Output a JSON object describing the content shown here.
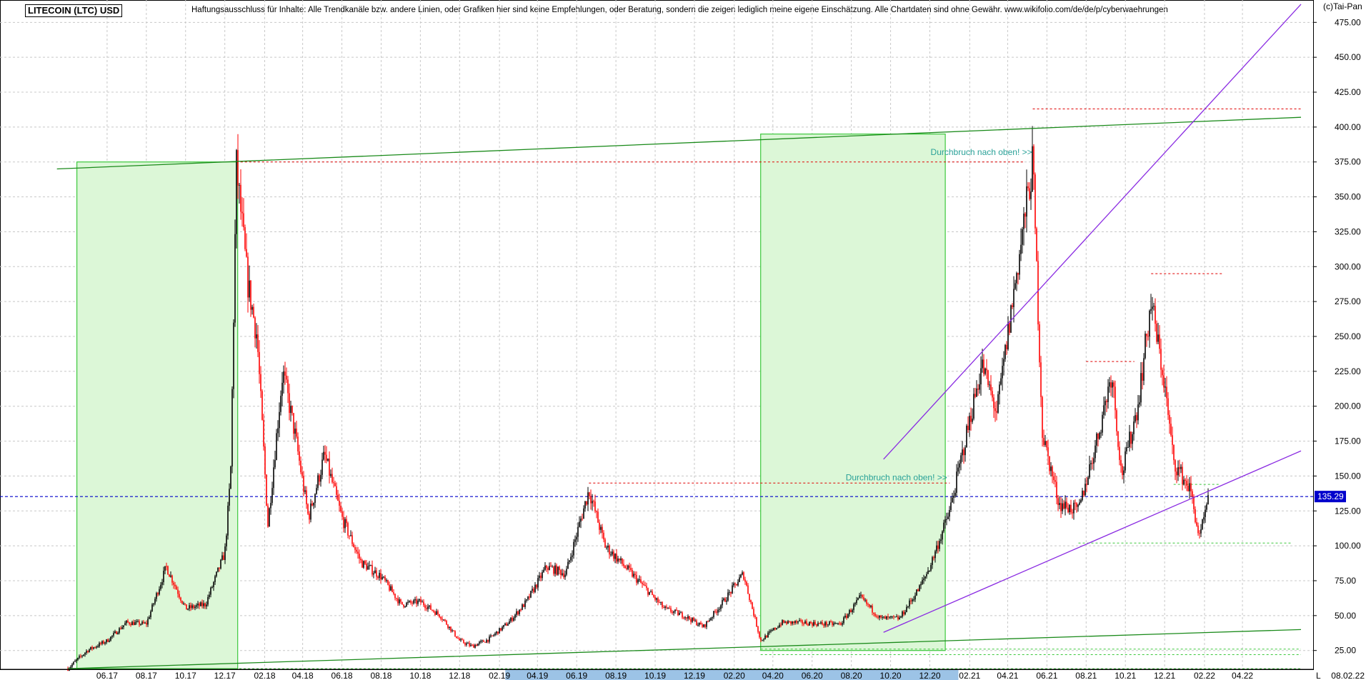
{
  "header": {
    "title": "LITECOIN (LTC) USD",
    "disclaimer": "Haftungsausschluss für Inhalte: Alle Trendkanäle bzw. andere Linien, oder Grafiken hier sind keine Empfehlungen, oder Beratung, sondern die zeigen lediglich meine eigene Einschätzung. Alle Chartdaten sind ohne Gewähr.  www.wikifolio.com/de/de/p/cyberwaehrungen",
    "copyright": "(c)Tai-Pan"
  },
  "colors": {
    "grid": "#c8c8c8",
    "up_candle": "#000000",
    "down_candle": "#ff0000",
    "box_fill": "#dcf7d7",
    "box_stroke": "#3cc83c",
    "trend_green": "#1a8a1a",
    "channel_purple": "#8a2be2",
    "resistance_red": "#e00000",
    "support_green": "#3cc83c",
    "current_price": "#0000cc",
    "annotation": "#2aa198",
    "x_highlight": "#9cc3e6"
  },
  "chart_data": {
    "type": "candlestick",
    "title": "LITECOIN (LTC) USD",
    "xlabel": "",
    "ylabel": "",
    "ylim": [
      10,
      490
    ],
    "y_ticks": [
      "25.00",
      "50.00",
      "75.00",
      "100.00",
      "125.00",
      "150.00",
      "175.00",
      "200.00",
      "225.00",
      "250.00",
      "275.00",
      "300.00",
      "325.00",
      "350.00",
      "375.00",
      "400.00",
      "425.00",
      "450.00",
      "475.00"
    ],
    "x_ticks": [
      "06.17",
      "08.17",
      "10.17",
      "12.17",
      "02.18",
      "04.18",
      "06.18",
      "08.18",
      "10.18",
      "12.18",
      "02.19",
      "04.19",
      "06.19",
      "08.19",
      "10.19",
      "12.19",
      "02.20",
      "04.20",
      "06.20",
      "08.20",
      "10.20",
      "12.20",
      "02.21",
      "04.21",
      "06.21",
      "08.21",
      "10.21",
      "12.21",
      "02.22",
      "04.22"
    ],
    "x_highlight_range": [
      "04.19",
      "12.20"
    ],
    "last_date": "08.02.22",
    "scale_label": "L",
    "current_price": 135.29,
    "current_price_label": "135.29",
    "price_path": [
      [
        "2017-04-01",
        12
      ],
      [
        "2017-05-01",
        25
      ],
      [
        "2017-06-01",
        32
      ],
      [
        "2017-07-01",
        45
      ],
      [
        "2017-08-01",
        44
      ],
      [
        "2017-09-01",
        85
      ],
      [
        "2017-10-01",
        55
      ],
      [
        "2017-11-01",
        58
      ],
      [
        "2017-12-01",
        95
      ],
      [
        "2017-12-10",
        150
      ],
      [
        "2017-12-19",
        372
      ],
      [
        "2018-01-05",
        290
      ],
      [
        "2018-01-20",
        250
      ],
      [
        "2018-02-06",
        115
      ],
      [
        "2018-03-01",
        225
      ],
      [
        "2018-03-20",
        180
      ],
      [
        "2018-04-10",
        120
      ],
      [
        "2018-05-05",
        165
      ],
      [
        "2018-06-01",
        120
      ],
      [
        "2018-07-01",
        88
      ],
      [
        "2018-08-01",
        78
      ],
      [
        "2018-09-01",
        58
      ],
      [
        "2018-10-01",
        60
      ],
      [
        "2018-11-01",
        50
      ],
      [
        "2018-12-01",
        32
      ],
      [
        "2018-12-20",
        28
      ],
      [
        "2019-01-15",
        33
      ],
      [
        "2019-02-15",
        45
      ],
      [
        "2019-03-15",
        60
      ],
      [
        "2019-04-15",
        85
      ],
      [
        "2019-05-15",
        80
      ],
      [
        "2019-06-20",
        140
      ],
      [
        "2019-07-15",
        100
      ],
      [
        "2019-08-15",
        85
      ],
      [
        "2019-09-15",
        70
      ],
      [
        "2019-10-15",
        55
      ],
      [
        "2019-11-15",
        50
      ],
      [
        "2019-12-15",
        42
      ],
      [
        "2020-01-15",
        60
      ],
      [
        "2020-02-15",
        80
      ],
      [
        "2020-03-13",
        32
      ],
      [
        "2020-04-15",
        45
      ],
      [
        "2020-05-15",
        45
      ],
      [
        "2020-06-15",
        44
      ],
      [
        "2020-07-15",
        44
      ],
      [
        "2020-08-15",
        63
      ],
      [
        "2020-09-15",
        48
      ],
      [
        "2020-10-15",
        48
      ],
      [
        "2020-11-15",
        70
      ],
      [
        "2020-12-01",
        85
      ],
      [
        "2021-01-01",
        125
      ],
      [
        "2021-01-20",
        165
      ],
      [
        "2021-02-20",
        230
      ],
      [
        "2021-03-15",
        195
      ],
      [
        "2021-04-10",
        280
      ],
      [
        "2021-05-10",
        375
      ],
      [
        "2021-05-25",
        180
      ],
      [
        "2021-06-20",
        130
      ],
      [
        "2021-07-20",
        125
      ],
      [
        "2021-08-20",
        180
      ],
      [
        "2021-09-10",
        225
      ],
      [
        "2021-09-25",
        150
      ],
      [
        "2021-10-20",
        200
      ],
      [
        "2021-11-10",
        275
      ],
      [
        "2021-12-01",
        215
      ],
      [
        "2021-12-15",
        160
      ],
      [
        "2022-01-10",
        140
      ],
      [
        "2022-01-24",
        105
      ],
      [
        "2022-02-08",
        135
      ]
    ],
    "resistance_lines": [
      {
        "level": 375,
        "from": "2017-12-19",
        "to": "2021-04-25"
      },
      {
        "level": 413,
        "from": "2021-05-10",
        "to": "2022-07-01"
      },
      {
        "level": 145,
        "from": "2019-06-20",
        "to": "2021-01-01"
      },
      {
        "level": 295,
        "from": "2021-11-10",
        "to": "2022-03-01"
      },
      {
        "level": 232,
        "from": "2021-08-01",
        "to": "2021-10-15"
      }
    ],
    "support_lines": [
      {
        "level": 102,
        "from": "2021-07-20",
        "to": "2022-06-15"
      },
      {
        "level": 144,
        "from": "2021-12-15",
        "to": "2022-02-25"
      },
      {
        "level": 26,
        "from": "2020-03-13",
        "to": "2022-07-01"
      },
      {
        "level": 22,
        "from": "2020-03-13",
        "to": "2022-07-01"
      },
      {
        "level": 12,
        "from": "2017-04-01",
        "to": "2022-07-01"
      }
    ],
    "trend_lines": [
      {
        "from": [
          "2017-03-15",
          370
        ],
        "to": [
          "2022-07-01",
          407
        ]
      },
      {
        "from": [
          "2017-04-01",
          12
        ],
        "to": [
          "2022-07-01",
          40
        ]
      }
    ],
    "channel_lines": [
      {
        "from": [
          "2020-09-20",
          38
        ],
        "to": [
          "2022-07-01",
          168
        ]
      },
      {
        "from": [
          "2020-09-20",
          162
        ],
        "to": [
          "2022-07-01",
          488
        ]
      }
    ],
    "boxes": [
      {
        "from": "2017-04-15",
        "to": "2017-12-21",
        "low": 12,
        "high": 375
      },
      {
        "from": "2020-03-13",
        "to": "2020-12-25",
        "low": 25,
        "high": 395
      }
    ],
    "annotations": [
      {
        "text": "Durchbruch nach oben! >>",
        "date": "2021-05-09",
        "price": 380
      },
      {
        "text": "Durchbruch nach oben! >>",
        "date": "2020-12-28",
        "price": 147
      }
    ]
  }
}
